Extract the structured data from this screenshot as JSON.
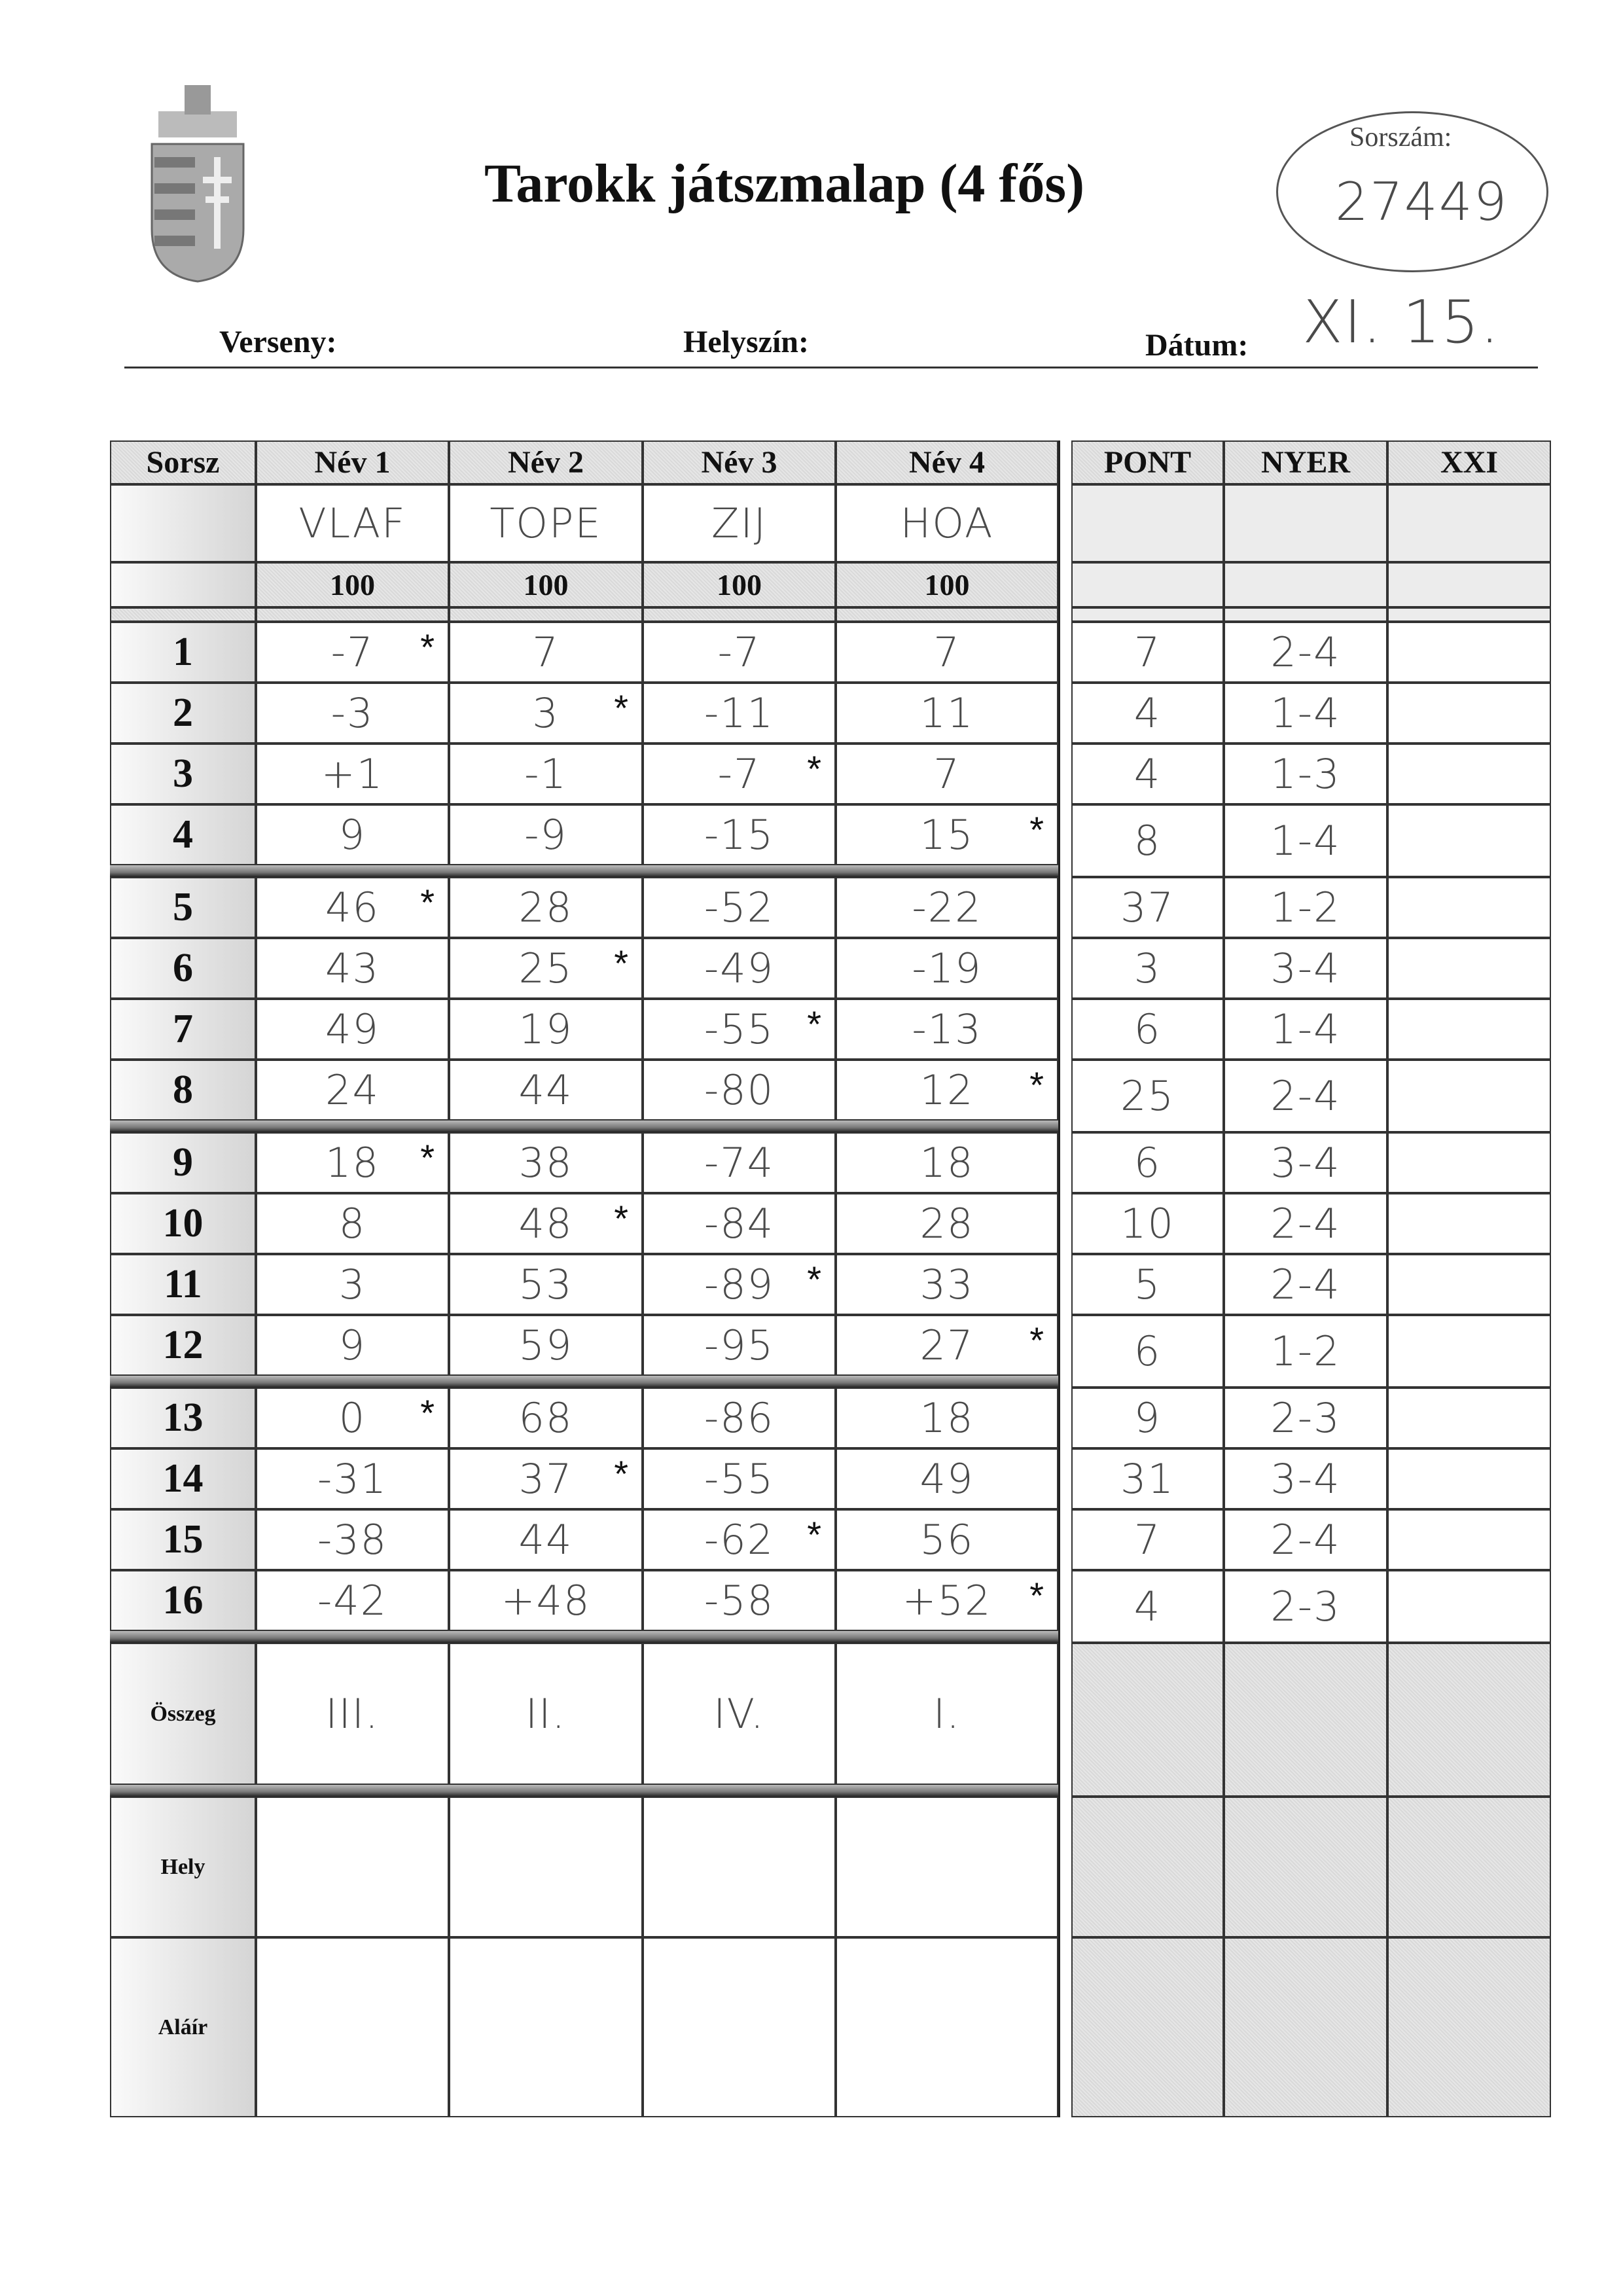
{
  "header": {
    "title": "Tarokk játszmalap (4 fős)",
    "serial_label": "Sorszám:",
    "serial_value": "27449",
    "competition_label": "Verseny:",
    "location_label": "Helyszín:",
    "date_label": "Dátum:",
    "date_value": "XI. 15."
  },
  "table": {
    "columns": [
      "Sorsz",
      "Név 1",
      "Név 2",
      "Név 3",
      "Név 4"
    ],
    "right_columns": [
      "PONT",
      "NYER",
      "XXI"
    ],
    "players": [
      "VLAF",
      "TOPE",
      "ZIJ",
      "HOA"
    ],
    "starting": [
      "100",
      "100",
      "100",
      "100"
    ],
    "rows": [
      {
        "n": "1",
        "scores": [
          "-7",
          "7",
          "-7",
          "7"
        ],
        "star": 0,
        "pont": "7",
        "nyer": "2-4"
      },
      {
        "n": "2",
        "scores": [
          "-3",
          "3",
          "-11",
          "11"
        ],
        "star": 1,
        "pont": "4",
        "nyer": "1-4"
      },
      {
        "n": "3",
        "scores": [
          "+1",
          "-1",
          "-7",
          "7"
        ],
        "star": 2,
        "pont": "4",
        "nyer": "1-3"
      },
      {
        "n": "4",
        "scores": [
          "9",
          "-9",
          "-15",
          "15"
        ],
        "star": 3,
        "pont": "8",
        "nyer": "1-4"
      },
      {
        "n": "5",
        "scores": [
          "46",
          "28",
          "-52",
          "-22"
        ],
        "star": 0,
        "pont": "37",
        "nyer": "1-2"
      },
      {
        "n": "6",
        "scores": [
          "43",
          "25",
          "-49",
          "-19"
        ],
        "star": 1,
        "pont": "3",
        "nyer": "3-4"
      },
      {
        "n": "7",
        "scores": [
          "49",
          "19",
          "-55",
          "-13"
        ],
        "star": 2,
        "pont": "6",
        "nyer": "1-4"
      },
      {
        "n": "8",
        "scores": [
          "24",
          "44",
          "-80",
          "12"
        ],
        "star": 3,
        "pont": "25",
        "nyer": "2-4"
      },
      {
        "n": "9",
        "scores": [
          "18",
          "38",
          "-74",
          "18"
        ],
        "star": 0,
        "pont": "6",
        "nyer": "3-4"
      },
      {
        "n": "10",
        "scores": [
          "8",
          "48",
          "-84",
          "28"
        ],
        "star": 1,
        "pont": "10",
        "nyer": "2-4"
      },
      {
        "n": "11",
        "scores": [
          "3",
          "53",
          "-89",
          "33"
        ],
        "star": 2,
        "pont": "5",
        "nyer": "2-4"
      },
      {
        "n": "12",
        "scores": [
          "9",
          "59",
          "-95",
          "27"
        ],
        "star": 3,
        "pont": "6",
        "nyer": "1-2"
      },
      {
        "n": "13",
        "scores": [
          "0",
          "68",
          "-86",
          "18"
        ],
        "star": 0,
        "pont": "9",
        "nyer": "2-3"
      },
      {
        "n": "14",
        "scores": [
          "-31",
          "37",
          "-55",
          "49"
        ],
        "star": 1,
        "pont": "31",
        "nyer": "3-4"
      },
      {
        "n": "15",
        "scores": [
          "-38",
          "44",
          "-62",
          "56"
        ],
        "star": 2,
        "pont": "7",
        "nyer": "2-4"
      },
      {
        "n": "16",
        "scores": [
          "-42",
          "+48",
          "-58",
          "+52"
        ],
        "star": 3,
        "pont": "4",
        "nyer": "2-3"
      }
    ],
    "star_symbol": "*",
    "sum_label": "Összeg",
    "sums": [
      "III.",
      "II.",
      "IV.",
      "I."
    ],
    "place_label": "Hely",
    "sign_label": "Aláír"
  }
}
